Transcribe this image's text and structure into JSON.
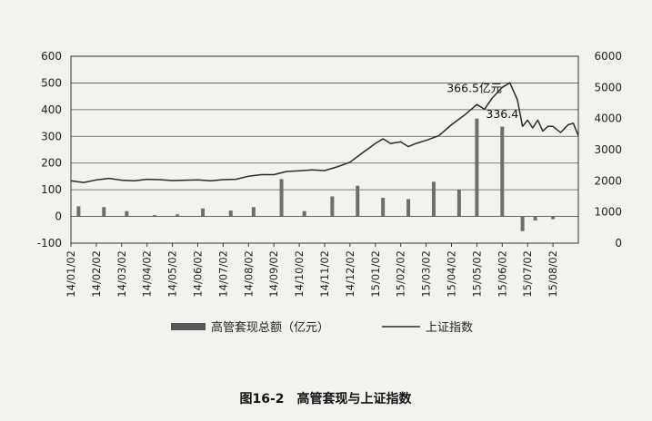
{
  "chart_data": {
    "type": "bar+line",
    "caption": "图16-2　高管套现与上证指数",
    "x_ticks": [
      "14/01/02",
      "14/02/02",
      "14/03/02",
      "14/04/02",
      "14/05/02",
      "14/06/02",
      "14/07/02",
      "14/08/02",
      "14/09/02",
      "14/10/02",
      "14/11/02",
      "14/12/02",
      "15/01/02",
      "15/02/02",
      "15/03/02",
      "15/04/02",
      "15/05/02",
      "15/06/02",
      "15/07/02",
      "15/08/02"
    ],
    "y_left": {
      "ticks": [
        "600",
        "500",
        "400",
        "300",
        "200",
        "100",
        "0",
        "-100"
      ],
      "ylim": [
        -100,
        600
      ]
    },
    "y_right": {
      "ticks": [
        "6000",
        "5000",
        "4000",
        "3000",
        "2000",
        "1000",
        "0"
      ],
      "ylim": [
        0,
        6000
      ]
    },
    "grid": true,
    "legend_position": "bottom",
    "series": [
      {
        "name": "高管套现总额（亿元）",
        "kind": "bar",
        "axis": "left",
        "color": "#6e6e6e",
        "points": [
          [
            0.3,
            38
          ],
          [
            1.3,
            35
          ],
          [
            2.2,
            20
          ],
          [
            3.3,
            5
          ],
          [
            4.2,
            8
          ],
          [
            5.2,
            30
          ],
          [
            6.3,
            22
          ],
          [
            7.2,
            35
          ],
          [
            8.3,
            140
          ],
          [
            9.2,
            20
          ],
          [
            10.3,
            75
          ],
          [
            11.3,
            115
          ],
          [
            12.3,
            70
          ],
          [
            13.3,
            65
          ],
          [
            14.3,
            130
          ],
          [
            15.3,
            100
          ],
          [
            16.0,
            366.5
          ],
          [
            17.0,
            336.4
          ],
          [
            17.8,
            -55
          ],
          [
            18.3,
            -15
          ],
          [
            19.0,
            -10
          ]
        ]
      },
      {
        "name": "上证指数",
        "kind": "line",
        "axis": "right",
        "color": "#2a2a2a",
        "points": [
          [
            0,
            2000
          ],
          [
            0.5,
            1950
          ],
          [
            1,
            2030
          ],
          [
            1.5,
            2080
          ],
          [
            2,
            2020
          ],
          [
            2.5,
            2000
          ],
          [
            3,
            2050
          ],
          [
            3.5,
            2040
          ],
          [
            4,
            2010
          ],
          [
            4.5,
            2020
          ],
          [
            5,
            2030
          ],
          [
            5.5,
            2000
          ],
          [
            6,
            2040
          ],
          [
            6.5,
            2050
          ],
          [
            7,
            2150
          ],
          [
            7.5,
            2200
          ],
          [
            8,
            2200
          ],
          [
            8.5,
            2300
          ],
          [
            9,
            2320
          ],
          [
            9.5,
            2350
          ],
          [
            10,
            2330
          ],
          [
            10.5,
            2450
          ],
          [
            11,
            2600
          ],
          [
            11.5,
            2900
          ],
          [
            12,
            3200
          ],
          [
            12.3,
            3350
          ],
          [
            12.6,
            3200
          ],
          [
            13,
            3250
          ],
          [
            13.3,
            3100
          ],
          [
            13.6,
            3200
          ],
          [
            14,
            3300
          ],
          [
            14.5,
            3450
          ],
          [
            15,
            3800
          ],
          [
            15.5,
            4100
          ],
          [
            16,
            4450
          ],
          [
            16.3,
            4300
          ],
          [
            16.6,
            4650
          ],
          [
            17,
            5000
          ],
          [
            17.3,
            5150
          ],
          [
            17.6,
            4600
          ],
          [
            17.8,
            3750
          ],
          [
            18,
            3950
          ],
          [
            18.2,
            3700
          ],
          [
            18.4,
            3950
          ],
          [
            18.6,
            3600
          ],
          [
            18.8,
            3750
          ],
          [
            19,
            3750
          ],
          [
            19.3,
            3550
          ],
          [
            19.6,
            3800
          ],
          [
            19.8,
            3850
          ],
          [
            20,
            3450
          ]
        ]
      }
    ],
    "annotations": [
      {
        "text": "366.5亿元",
        "x": 15.9,
        "y_right": 4850
      },
      {
        "text": "336.4",
        "x": 17.0,
        "y_right": 4020
      }
    ]
  }
}
